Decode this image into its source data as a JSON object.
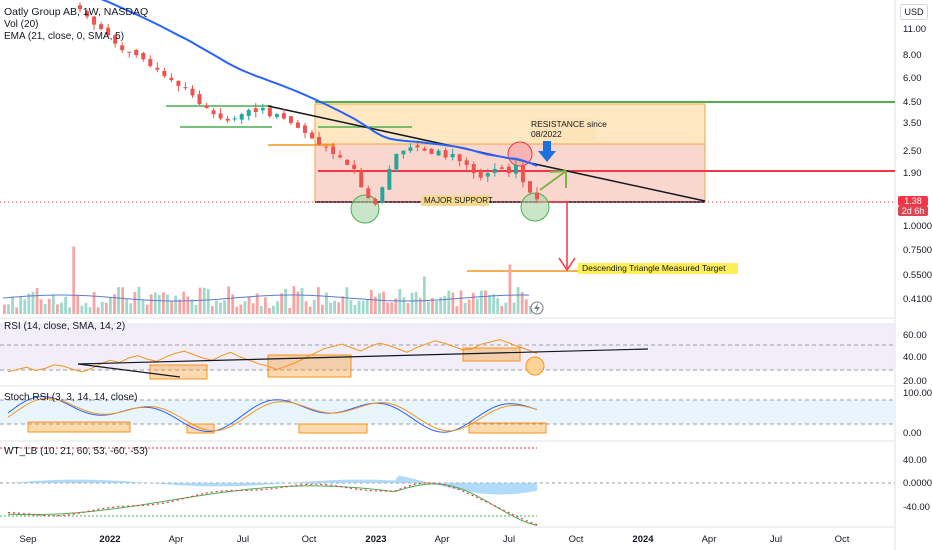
{
  "header": {
    "title": "Oatly Group AB, 1W, NASDAQ",
    "vol_label": "Vol (20)",
    "ema_label": "EMA (21, close, 0, SMA, 5)",
    "currency": "USD"
  },
  "price_tag": {
    "price": "1.38",
    "countdown": "2d 6h"
  },
  "chart_data": [
    {
      "type": "candlestick",
      "name": "price",
      "yscale": "log",
      "yticks": [
        "11.00",
        "8.00",
        "6.00",
        "4.50",
        "3.50",
        "2.50",
        "1.90",
        "1.38",
        "1.0000",
        "0.7500",
        "0.5500",
        "0.4100"
      ],
      "xticks": [
        "Sep",
        "2022",
        "Apr",
        "Jul",
        "Oct",
        "2023",
        "Apr",
        "Jul",
        "Oct",
        "2024",
        "Apr",
        "Jul",
        "Oct"
      ],
      "close_path": [
        14.0,
        12.8,
        11.6,
        11.0,
        10.2,
        9.2,
        8.5,
        8.3,
        8.0,
        7.6,
        7.0,
        6.7,
        6.2,
        5.9,
        5.5,
        5.4,
        4.9,
        4.4,
        4.2,
        3.9,
        3.7,
        3.6,
        3.7,
        3.9,
        4.1,
        4.0,
        4.2,
        3.8,
        3.9,
        3.7,
        3.5,
        3.3,
        3.1,
        2.9,
        2.7,
        2.6,
        2.4,
        2.3,
        2.1,
        2.0,
        1.6,
        1.4,
        1.3,
        1.6,
        2.0,
        2.4,
        2.5,
        2.6,
        2.6,
        2.5,
        2.4,
        2.5,
        2.3,
        2.4,
        2.2,
        2.1,
        1.9,
        1.8,
        1.9,
        2.0,
        2.0,
        1.9,
        2.1,
        1.7,
        1.5,
        1.38
      ],
      "ema_label": "EMA 21",
      "annotations": [
        "RESISTANCE since 08/2022",
        "MAJOR SUPPORT",
        "Descending Triangle Measured Target"
      ]
    },
    {
      "type": "line",
      "name": "RSI (14, close, SMA, 14, 2)",
      "yticks": [
        "60.00",
        "40.00",
        "20.00"
      ],
      "values": [
        28,
        30,
        32,
        29,
        31,
        34,
        33,
        30,
        28,
        31,
        35,
        38,
        36,
        40,
        42,
        39,
        37,
        41,
        44,
        46,
        43,
        40,
        38,
        42,
        45,
        41,
        38,
        35,
        33,
        30,
        33,
        36,
        40,
        44,
        48,
        50,
        52,
        49,
        46,
        50,
        53,
        51,
        48,
        45,
        49,
        52,
        55,
        53,
        50,
        47,
        48,
        52,
        54,
        56,
        53,
        50,
        47,
        44
      ]
    },
    {
      "type": "line",
      "name": "Stoch RSI (3, 3, 14, 14, close)",
      "yticks": [
        "100.00",
        "0.00"
      ]
    },
    {
      "type": "area",
      "name": "WT_LB (10, 21, 60, 53, -60, -53)",
      "yticks": [
        "40.00",
        "0.0000",
        "-40.00"
      ]
    }
  ]
}
